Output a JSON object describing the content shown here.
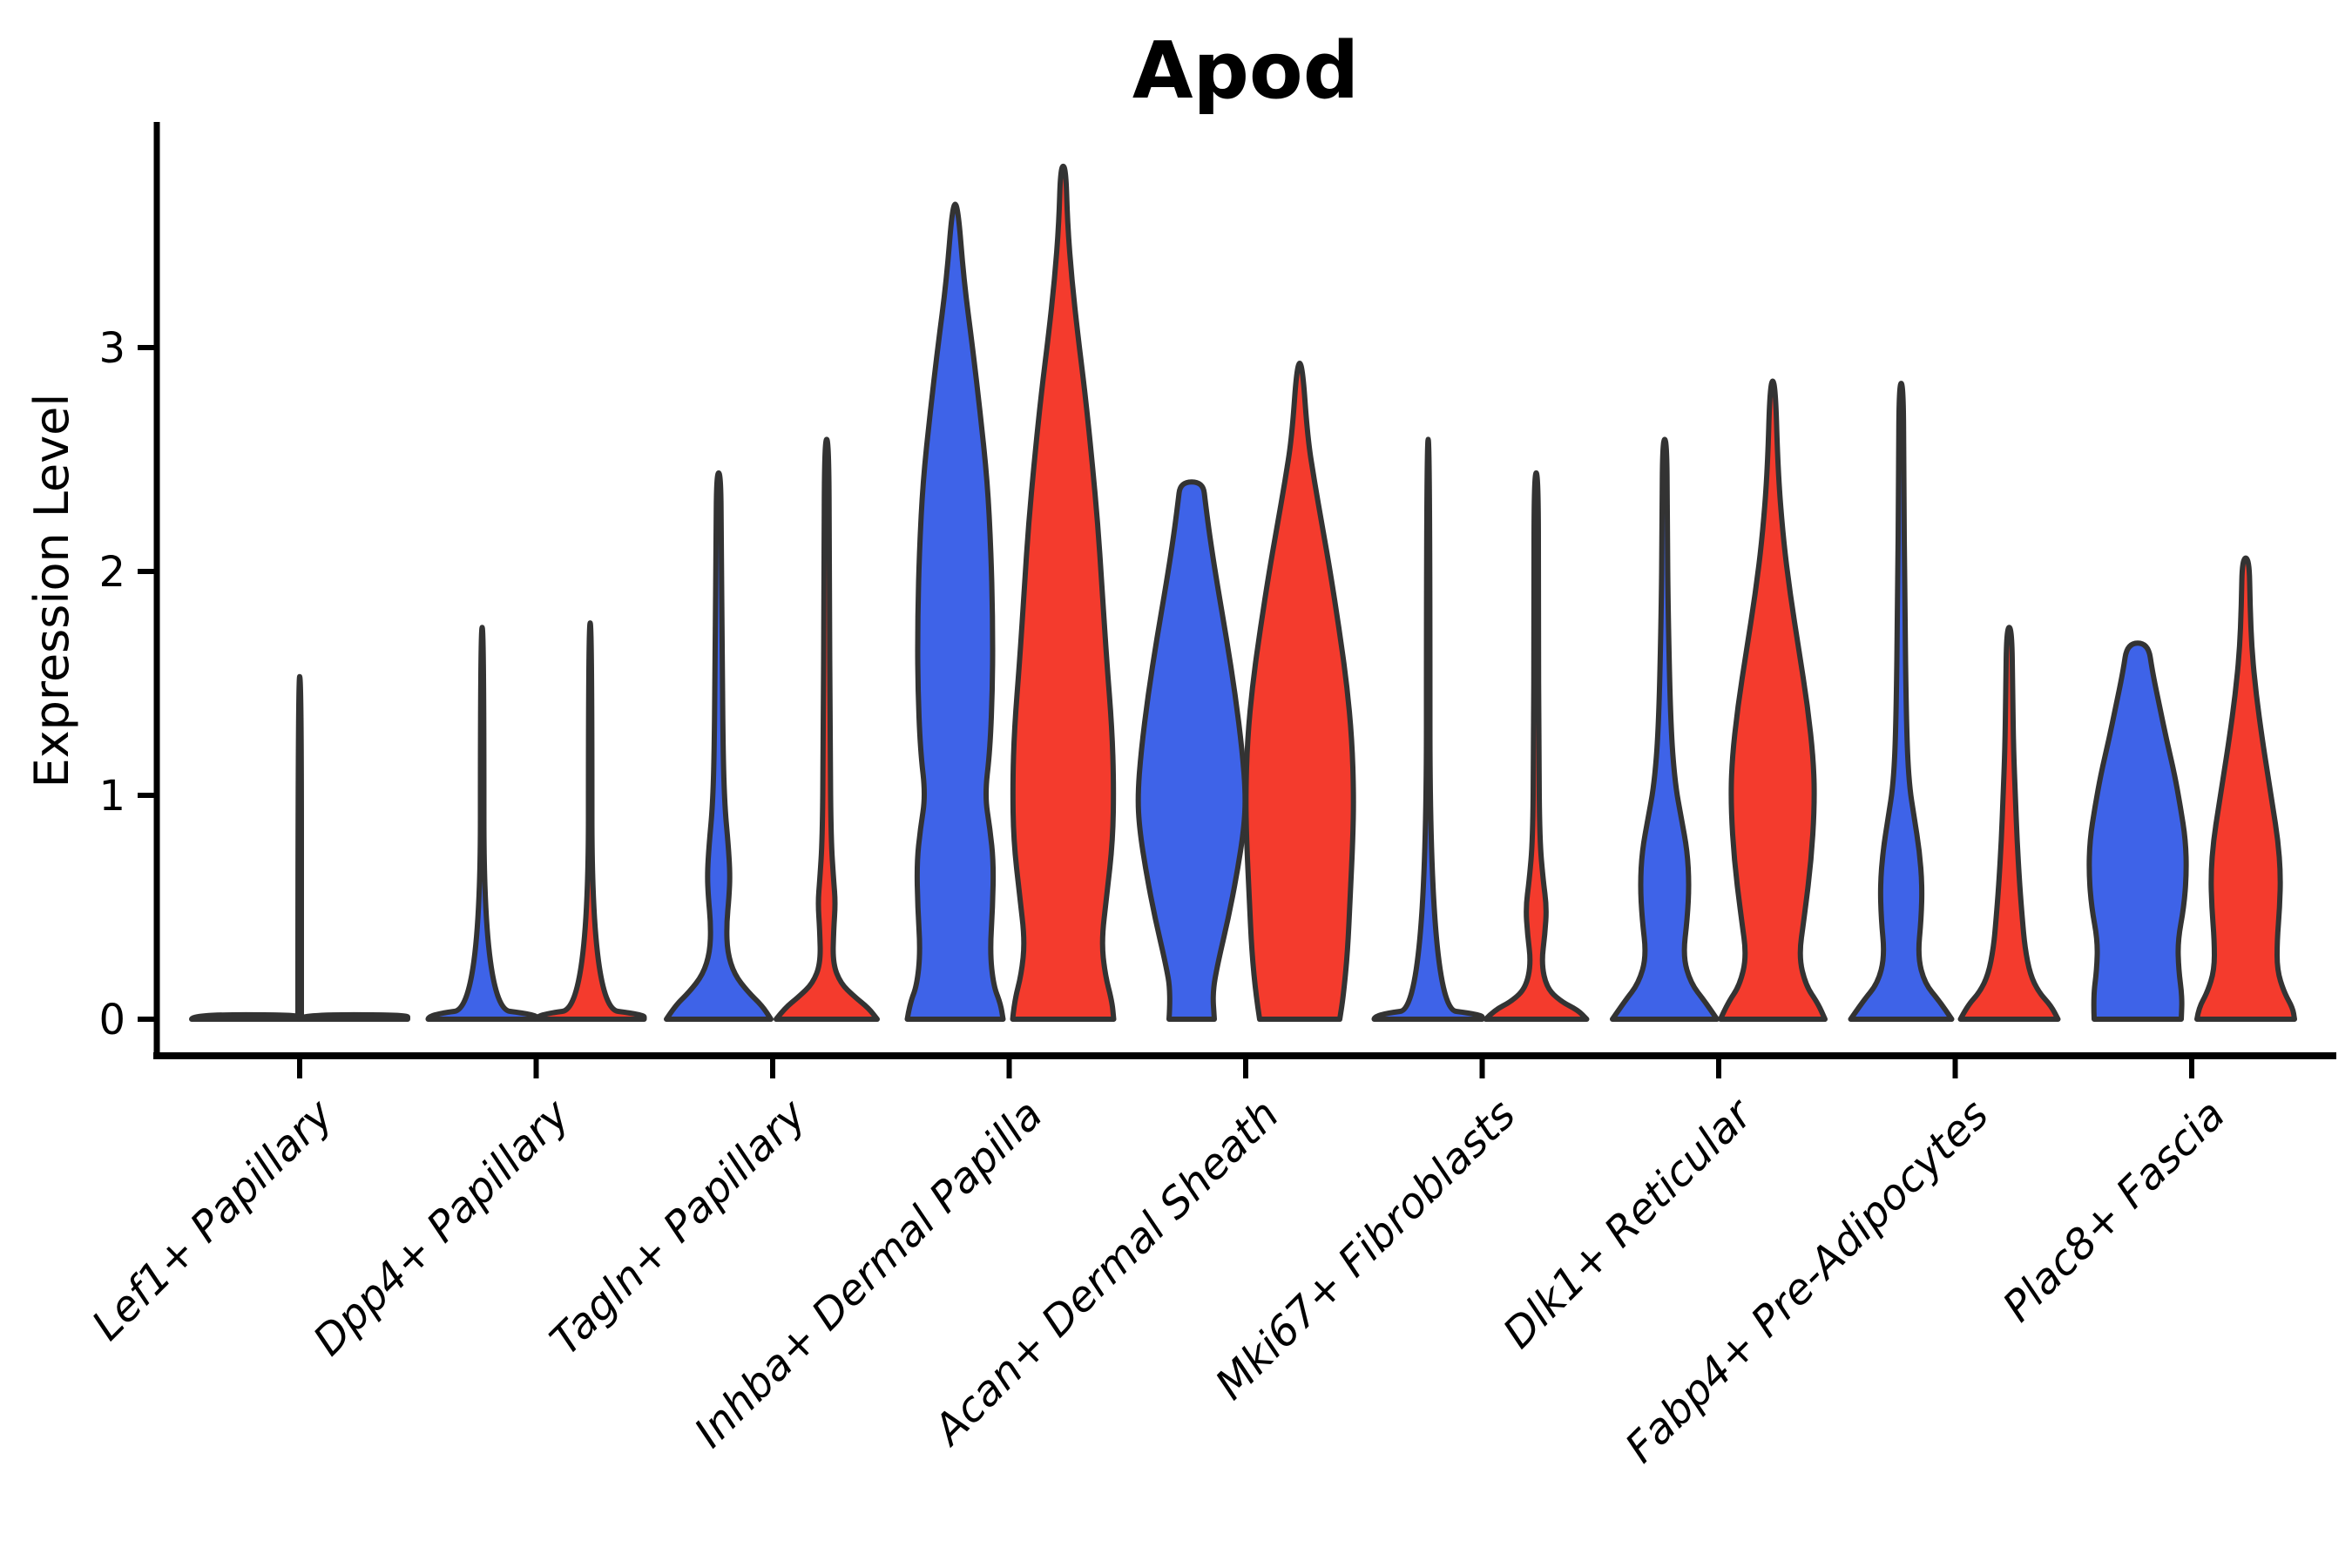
{
  "chart_data": {
    "type": "violin",
    "title": "Apod",
    "xlabel": "",
    "ylabel": "Expression Level",
    "yticks": [
      0,
      1,
      2,
      3
    ],
    "ylim": [
      -0.18,
      4.0
    ],
    "grid": "off",
    "legend": "none",
    "colors": {
      "blue": "#3E63E8",
      "red": "#F43B2D",
      "outline": "#333333",
      "axis": "#000000"
    },
    "categories": [
      "Lef1+ Papillary",
      "Dpp4+ Papillary",
      "Tagln+ Papillary",
      "Inhba+ Dermal Papilla",
      "Acan+ Dermal Sheath",
      "Mki67+ Fibroblasts",
      "Dlk1+ Reticular",
      "Fabp4+ Pre-Adipocytes",
      "Plac8+ Fascia"
    ],
    "groups": [
      {
        "label": "Lef1+ Papillary",
        "violins": [
          {
            "series": "blue",
            "dx": -62,
            "max": 0.02,
            "profile": [
              [
                0,
                62
              ],
              [
                0.02,
                62
              ]
            ]
          },
          {
            "series": "red",
            "dx": 62,
            "max": 0.02,
            "profile": [
              [
                0,
                62
              ],
              [
                0.02,
                62
              ]
            ]
          },
          {
            "series": "outlier-spike",
            "dx": 0,
            "max": 1.53,
            "profile": [
              [
                0.02,
                2
              ],
              [
                1.53,
                2
              ]
            ]
          }
        ]
      },
      {
        "label": "Dpp4+ Papillary",
        "violins": [
          {
            "series": "blue",
            "dx": -62,
            "max": 1.75,
            "profile": [
              [
                0,
                62
              ],
              [
                0.02,
                62
              ],
              [
                0.05,
                2
              ],
              [
                1.75,
                2
              ]
            ]
          },
          {
            "series": "red",
            "dx": 62,
            "max": 1.77,
            "profile": [
              [
                0,
                62
              ],
              [
                0.02,
                62
              ],
              [
                0.05,
                2
              ],
              [
                1.77,
                2
              ]
            ]
          }
        ]
      },
      {
        "label": "Tagln+ Papillary",
        "violins": [
          {
            "series": "blue",
            "dx": -62,
            "max": 2.44,
            "profile": [
              [
                0,
                60
              ],
              [
                0.06,
                50
              ],
              [
                0.12,
                34
              ],
              [
                0.2,
                18
              ],
              [
                0.3,
                10
              ],
              [
                0.42,
                9
              ],
              [
                0.55,
                12
              ],
              [
                0.65,
                13
              ],
              [
                0.78,
                11
              ],
              [
                0.95,
                7
              ],
              [
                1.2,
                5
              ],
              [
                1.7,
                4
              ],
              [
                2.1,
                3
              ],
              [
                2.44,
                2.5
              ]
            ]
          },
          {
            "series": "red",
            "dx": 62,
            "max": 2.59,
            "profile": [
              [
                0,
                58
              ],
              [
                0.05,
                48
              ],
              [
                0.1,
                32
              ],
              [
                0.16,
                16
              ],
              [
                0.25,
                7
              ],
              [
                0.4,
                8
              ],
              [
                0.52,
                10
              ],
              [
                0.62,
                8
              ],
              [
                0.8,
                5
              ],
              [
                1.2,
                4
              ],
              [
                2.0,
                3
              ],
              [
                2.59,
                2.5
              ]
            ]
          }
        ]
      },
      {
        "label": "Inhba+ Dermal Papilla",
        "violins": [
          {
            "series": "blue",
            "dx": -62,
            "max": 3.64,
            "profile": [
              [
                0,
                55
              ],
              [
                0.07,
                52
              ],
              [
                0.15,
                44
              ],
              [
                0.3,
                40
              ],
              [
                0.5,
                43
              ],
              [
                0.7,
                44
              ],
              [
                0.85,
                40
              ],
              [
                1.0,
                34
              ],
              [
                1.2,
                40
              ],
              [
                1.5,
                43
              ],
              [
                1.8,
                43
              ],
              [
                2.1,
                41
              ],
              [
                2.4,
                37
              ],
              [
                2.7,
                29
              ],
              [
                3.0,
                20
              ],
              [
                3.3,
                10
              ],
              [
                3.64,
                3
              ]
            ]
          },
          {
            "series": "red",
            "dx": 62,
            "max": 3.81,
            "profile": [
              [
                0,
                58
              ],
              [
                0.08,
                56
              ],
              [
                0.2,
                48
              ],
              [
                0.35,
                44
              ],
              [
                0.55,
                50
              ],
              [
                0.8,
                57
              ],
              [
                1.05,
                58
              ],
              [
                1.3,
                56
              ],
              [
                1.6,
                50
              ],
              [
                1.9,
                45
              ],
              [
                2.2,
                40
              ],
              [
                2.5,
                33
              ],
              [
                2.8,
                25
              ],
              [
                3.05,
                17
              ],
              [
                3.3,
                10
              ],
              [
                3.55,
                5
              ],
              [
                3.81,
                3
              ]
            ]
          }
        ]
      },
      {
        "label": "Acan+ Dermal Sheath",
        "violins": [
          {
            "series": "blue",
            "dx": -62,
            "max": 2.4,
            "flat_top": true,
            "profile": [
              [
                0,
                26
              ],
              [
                0.12,
                24
              ],
              [
                0.25,
                30
              ],
              [
                0.45,
                42
              ],
              [
                0.65,
                52
              ],
              [
                0.85,
                60
              ],
              [
                1.0,
                62
              ],
              [
                1.2,
                58
              ],
              [
                1.45,
                50
              ],
              [
                1.7,
                40
              ],
              [
                1.95,
                29
              ],
              [
                2.15,
                21
              ],
              [
                2.3,
                16
              ],
              [
                2.4,
                13
              ]
            ]
          },
          {
            "series": "red",
            "dx": 62,
            "max": 2.93,
            "profile": [
              [
                0,
                46
              ],
              [
                0.1,
                50
              ],
              [
                0.3,
                55
              ],
              [
                0.55,
                58
              ],
              [
                0.8,
                61
              ],
              [
                1.0,
                62
              ],
              [
                1.25,
                60
              ],
              [
                1.5,
                54
              ],
              [
                1.75,
                45
              ],
              [
                2.0,
                35
              ],
              [
                2.2,
                26
              ],
              [
                2.4,
                17
              ],
              [
                2.6,
                9
              ],
              [
                2.93,
                3
              ]
            ]
          }
        ]
      },
      {
        "label": "Mki67+ Fibroblasts",
        "violins": [
          {
            "series": "blue",
            "dx": -62,
            "max": 2.59,
            "profile": [
              [
                0,
                62
              ],
              [
                0.02,
                62
              ],
              [
                0.05,
                2
              ],
              [
                2.59,
                2
              ]
            ]
          },
          {
            "series": "red",
            "dx": 62,
            "max": 2.44,
            "profile": [
              [
                0,
                58
              ],
              [
                0.04,
                48
              ],
              [
                0.08,
                28
              ],
              [
                0.14,
                12
              ],
              [
                0.25,
                6
              ],
              [
                0.38,
                10
              ],
              [
                0.5,
                12
              ],
              [
                0.62,
                8
              ],
              [
                0.8,
                4
              ],
              [
                1.2,
                3
              ],
              [
                1.8,
                2.5
              ],
              [
                2.44,
                2.5
              ]
            ]
          }
        ]
      },
      {
        "label": "Dlk1+ Reticular",
        "violins": [
          {
            "series": "blue",
            "dx": -62,
            "max": 2.59,
            "profile": [
              [
                0,
                60
              ],
              [
                0.08,
                46
              ],
              [
                0.16,
                30
              ],
              [
                0.28,
                21
              ],
              [
                0.45,
                26
              ],
              [
                0.6,
                28
              ],
              [
                0.75,
                26
              ],
              [
                0.9,
                19
              ],
              [
                1.05,
                12
              ],
              [
                1.3,
                7
              ],
              [
                1.8,
                4
              ],
              [
                2.2,
                3
              ],
              [
                2.59,
                2.5
              ]
            ]
          },
          {
            "series": "red",
            "dx": 62,
            "max": 2.85,
            "profile": [
              [
                0,
                60
              ],
              [
                0.07,
                52
              ],
              [
                0.15,
                38
              ],
              [
                0.28,
                30
              ],
              [
                0.45,
                36
              ],
              [
                0.7,
                44
              ],
              [
                0.95,
                48
              ],
              [
                1.15,
                47
              ],
              [
                1.4,
                40
              ],
              [
                1.65,
                30
              ],
              [
                1.9,
                20
              ],
              [
                2.15,
                12
              ],
              [
                2.45,
                6
              ],
              [
                2.85,
                3
              ]
            ]
          }
        ]
      },
      {
        "label": "Fabp4+ Pre-Adipocytes",
        "violins": [
          {
            "series": "blue",
            "dx": -62,
            "max": 2.84,
            "profile": [
              [
                0,
                58
              ],
              [
                0.08,
                44
              ],
              [
                0.16,
                27
              ],
              [
                0.28,
                19
              ],
              [
                0.45,
                23
              ],
              [
                0.6,
                24
              ],
              [
                0.75,
                21
              ],
              [
                0.9,
                15
              ],
              [
                1.05,
                9
              ],
              [
                1.3,
                6
              ],
              [
                1.9,
                4
              ],
              [
                2.4,
                3
              ],
              [
                2.84,
                2.5
              ]
            ]
          },
          {
            "series": "red",
            "dx": 62,
            "max": 1.75,
            "profile": [
              [
                0,
                56
              ],
              [
                0.06,
                48
              ],
              [
                0.12,
                34
              ],
              [
                0.2,
                24
              ],
              [
                0.32,
                18
              ],
              [
                0.45,
                15
              ],
              [
                0.6,
                12
              ],
              [
                0.8,
                9
              ],
              [
                1.0,
                7
              ],
              [
                1.2,
                5
              ],
              [
                1.45,
                4
              ],
              [
                1.75,
                3
              ]
            ]
          }
        ]
      },
      {
        "label": "Plac8+ Fascia",
        "violins": [
          {
            "series": "blue",
            "dx": -62,
            "max": 1.68,
            "flat_top": true,
            "profile": [
              [
                0,
                50
              ],
              [
                0.1,
                51
              ],
              [
                0.22,
                47
              ],
              [
                0.35,
                46
              ],
              [
                0.5,
                53
              ],
              [
                0.65,
                56
              ],
              [
                0.8,
                55
              ],
              [
                0.95,
                49
              ],
              [
                1.1,
                42
              ],
              [
                1.25,
                33
              ],
              [
                1.4,
                25
              ],
              [
                1.55,
                17
              ],
              [
                1.68,
                12
              ]
            ]
          },
          {
            "series": "red",
            "dx": 62,
            "max": 2.06,
            "flat_top": true,
            "profile": [
              [
                0,
                56
              ],
              [
                0.05,
                54
              ],
              [
                0.12,
                44
              ],
              [
                0.22,
                36
              ],
              [
                0.35,
                36
              ],
              [
                0.5,
                39
              ],
              [
                0.65,
                40
              ],
              [
                0.8,
                37
              ],
              [
                0.95,
                31
              ],
              [
                1.1,
                25
              ],
              [
                1.25,
                19
              ],
              [
                1.45,
                12
              ],
              [
                1.65,
                7
              ],
              [
                1.85,
                5
              ],
              [
                2.06,
                4
              ]
            ]
          }
        ]
      }
    ]
  }
}
